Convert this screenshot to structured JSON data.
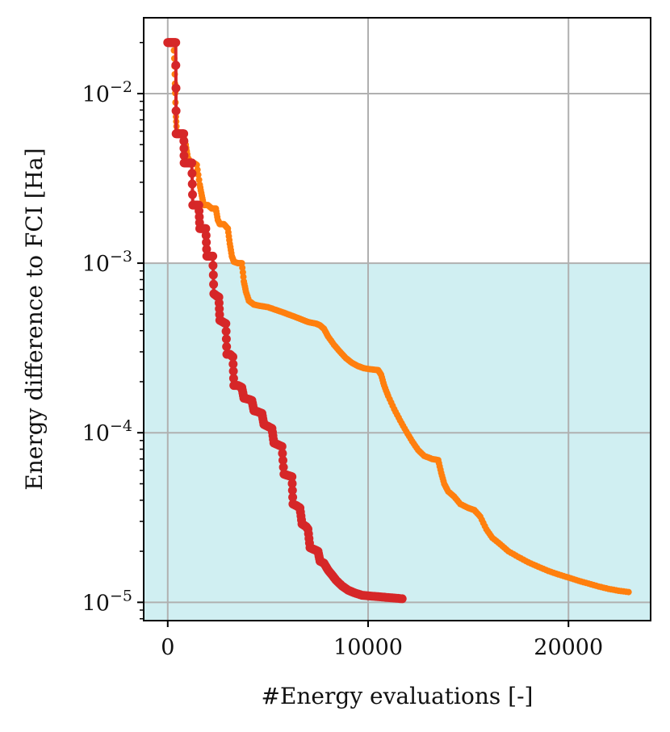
{
  "chart_data": {
    "type": "scatter",
    "xlabel": "#Energy evaluations [-]",
    "ylabel": "Energy difference to FCI [Ha]",
    "x_ticks": [
      0,
      10000,
      20000
    ],
    "x_tick_labels": [
      "0",
      "10000",
      "20000"
    ],
    "y_ticks": [
      1e-05,
      0.0001,
      0.001,
      0.01
    ],
    "y_tick_labels": [
      {
        "base": "10",
        "exp": "−5"
      },
      {
        "base": "10",
        "exp": "−4"
      },
      {
        "base": "10",
        "exp": "−3"
      },
      {
        "base": "10",
        "exp": "−2"
      }
    ],
    "xlim": [
      -1200,
      24100
    ],
    "ylim": [
      7.8e-06,
      0.028
    ],
    "y_scale": "log",
    "grid": true,
    "shaded_region": {
      "y_from": 7.8e-06,
      "y_to": 0.001,
      "color": "#d0eff2"
    },
    "series": [
      {
        "color": "#ff7f0e",
        "style": "markers",
        "points": [
          [
            0,
            0.02
          ],
          [
            150,
            0.02
          ],
          [
            300,
            0.02
          ],
          [
            350,
            0.013
          ],
          [
            400,
            0.0078
          ],
          [
            450,
            0.006
          ],
          [
            600,
            0.0058
          ],
          [
            750,
            0.0058
          ],
          [
            900,
            0.005
          ],
          [
            1000,
            0.0042
          ],
          [
            1150,
            0.0039
          ],
          [
            1300,
            0.0039
          ],
          [
            1450,
            0.0038
          ],
          [
            1600,
            0.0029
          ],
          [
            1700,
            0.0025
          ],
          [
            1800,
            0.0022
          ],
          [
            2000,
            0.0022
          ],
          [
            2200,
            0.0021
          ],
          [
            2400,
            0.0021
          ],
          [
            2500,
            0.0018
          ],
          [
            2600,
            0.0017
          ],
          [
            2800,
            0.0017
          ],
          [
            3000,
            0.0016
          ],
          [
            3100,
            0.0013
          ],
          [
            3200,
            0.0011
          ],
          [
            3300,
            0.00102
          ],
          [
            3500,
            0.001
          ],
          [
            3700,
            0.001
          ],
          [
            3800,
            0.00078
          ],
          [
            3900,
            0.00068
          ],
          [
            4050,
            0.0006
          ],
          [
            4300,
            0.00057
          ],
          [
            4600,
            0.00056
          ],
          [
            5000,
            0.00055
          ],
          [
            5400,
            0.00053
          ],
          [
            5800,
            0.00051
          ],
          [
            6200,
            0.00049
          ],
          [
            6600,
            0.00047
          ],
          [
            7000,
            0.00045
          ],
          [
            7400,
            0.00044
          ],
          [
            7600,
            0.00043
          ],
          [
            7800,
            0.00041
          ],
          [
            8000,
            0.00037
          ],
          [
            8300,
            0.00033
          ],
          [
            8600,
            0.0003
          ],
          [
            8900,
            0.000275
          ],
          [
            9200,
            0.000258
          ],
          [
            9500,
            0.000247
          ],
          [
            9800,
            0.00024
          ],
          [
            10200,
            0.000236
          ],
          [
            10500,
            0.000234
          ],
          [
            10650,
            0.00022
          ],
          [
            10800,
            0.00019
          ],
          [
            11000,
            0.000165
          ],
          [
            11300,
            0.000138
          ],
          [
            11600,
            0.000118
          ],
          [
            11900,
            0.000102
          ],
          [
            12200,
            8.9e-05
          ],
          [
            12500,
            7.9e-05
          ],
          [
            12800,
            7.3e-05
          ],
          [
            13200,
            7e-05
          ],
          [
            13500,
            6.9e-05
          ],
          [
            13650,
            5.8e-05
          ],
          [
            13800,
            5e-05
          ],
          [
            14000,
            4.5e-05
          ],
          [
            14300,
            4.2e-05
          ],
          [
            14600,
            3.8e-05
          ],
          [
            15000,
            3.6e-05
          ],
          [
            15300,
            3.5e-05
          ],
          [
            15600,
            3.2e-05
          ],
          [
            15900,
            2.7e-05
          ],
          [
            16200,
            2.4e-05
          ],
          [
            16600,
            2.2e-05
          ],
          [
            17000,
            2e-05
          ],
          [
            17500,
            1.85e-05
          ],
          [
            18000,
            1.72e-05
          ],
          [
            18500,
            1.62e-05
          ],
          [
            19000,
            1.53e-05
          ],
          [
            19500,
            1.46e-05
          ],
          [
            20000,
            1.4e-05
          ],
          [
            20500,
            1.34e-05
          ],
          [
            21000,
            1.29e-05
          ],
          [
            21500,
            1.24e-05
          ],
          [
            22000,
            1.2e-05
          ],
          [
            22500,
            1.17e-05
          ],
          [
            23000,
            1.15e-05
          ]
        ]
      },
      {
        "color": "#d62728",
        "style": "line+markers",
        "points": [
          [
            0,
            0.02
          ],
          [
            100,
            0.02
          ],
          [
            200,
            0.02
          ],
          [
            300,
            0.02
          ],
          [
            400,
            0.02
          ],
          [
            420,
            0.0058
          ],
          [
            550,
            0.0058
          ],
          [
            700,
            0.0058
          ],
          [
            800,
            0.0058
          ],
          [
            820,
            0.0039
          ],
          [
            950,
            0.0039
          ],
          [
            1100,
            0.0039
          ],
          [
            1200,
            0.0039
          ],
          [
            1250,
            0.0022
          ],
          [
            1400,
            0.0022
          ],
          [
            1550,
            0.0022
          ],
          [
            1600,
            0.0016
          ],
          [
            1750,
            0.0016
          ],
          [
            1900,
            0.0016
          ],
          [
            1950,
            0.0011
          ],
          [
            2100,
            0.0011
          ],
          [
            2250,
            0.0011
          ],
          [
            2300,
            0.00066
          ],
          [
            2450,
            0.00064
          ],
          [
            2550,
            0.00063
          ],
          [
            2600,
            0.00046
          ],
          [
            2750,
            0.00045
          ],
          [
            2900,
            0.00044
          ],
          [
            2950,
            0.00029
          ],
          [
            3100,
            0.00029
          ],
          [
            3250,
            0.00028
          ],
          [
            3300,
            0.00019
          ],
          [
            3500,
            0.00019
          ],
          [
            3700,
            0.000185
          ],
          [
            3800,
            0.00016
          ],
          [
            4000,
            0.000158
          ],
          [
            4200,
            0.000155
          ],
          [
            4300,
            0.000135
          ],
          [
            4500,
            0.000133
          ],
          [
            4700,
            0.00013
          ],
          [
            4800,
            0.000112
          ],
          [
            5000,
            0.000109
          ],
          [
            5200,
            0.000106
          ],
          [
            5300,
            8.7e-05
          ],
          [
            5500,
            8.5e-05
          ],
          [
            5700,
            8.3e-05
          ],
          [
            5800,
            5.7e-05
          ],
          [
            6000,
            5.6e-05
          ],
          [
            6200,
            5.5e-05
          ],
          [
            6250,
            3.8e-05
          ],
          [
            6450,
            3.7e-05
          ],
          [
            6600,
            3.6e-05
          ],
          [
            6700,
            2.9e-05
          ],
          [
            6900,
            2.8e-05
          ],
          [
            7000,
            2.7e-05
          ],
          [
            7100,
            2.1e-05
          ],
          [
            7300,
            2.05e-05
          ],
          [
            7500,
            2e-05
          ],
          [
            7600,
            1.75e-05
          ],
          [
            7800,
            1.7e-05
          ],
          [
            8000,
            1.55e-05
          ],
          [
            8200,
            1.45e-05
          ],
          [
            8400,
            1.35e-05
          ],
          [
            8700,
            1.25e-05
          ],
          [
            9000,
            1.18e-05
          ],
          [
            9300,
            1.14e-05
          ],
          [
            9700,
            1.1e-05
          ],
          [
            10100,
            1.09e-05
          ],
          [
            10500,
            1.08e-05
          ],
          [
            10900,
            1.07e-05
          ],
          [
            11300,
            1.06e-05
          ],
          [
            11700,
            1.05e-05
          ]
        ]
      }
    ]
  }
}
